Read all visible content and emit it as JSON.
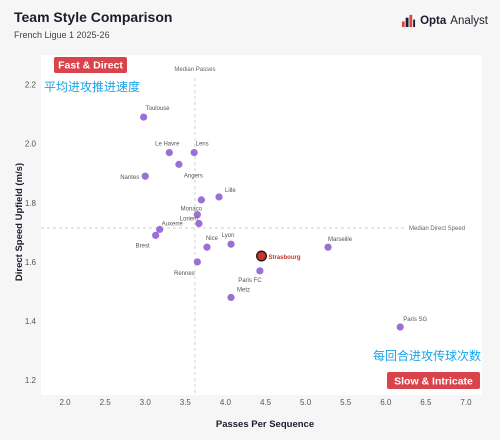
{
  "header": {
    "title": "Team Style Comparison",
    "subtitle": "French Ligue 1 2025-26",
    "logo_bold": "Opta",
    "logo_text": "Analyst"
  },
  "colors": {
    "point": "#9b6fd6",
    "highlight_point": "#c0392b",
    "badge": "#d9434b",
    "annotation": "#1ba3e8",
    "median_line": "#c8c8c8"
  },
  "chart_data": {
    "type": "scatter",
    "xlabel": "Passes Per Sequence",
    "ylabel": "Direct Speed Upfield (m/s)",
    "xlim": [
      1.7,
      7.2
    ],
    "ylim": [
      1.15,
      2.3
    ],
    "xticks": [
      "2.0",
      "2.5",
      "3.0",
      "3.5",
      "4.0",
      "4.5",
      "5.0",
      "5.5",
      "6.0",
      "6.5",
      "7.0"
    ],
    "yticks": [
      "1.2",
      "1.4",
      "1.6",
      "1.8",
      "2.0",
      "2.2"
    ],
    "grid": false,
    "median_x": 3.62,
    "median_y": 1.715,
    "median_x_label": "Median Passes",
    "median_y_label": "Median Direct Speed",
    "quadrants": {
      "top_left": "Fast & Direct",
      "bottom_right": "Slow & Intricate"
    },
    "annotations": {
      "top_left_cn": "平均进攻推进速度",
      "bottom_right_cn": "每回合进攻传球次数"
    },
    "points": [
      {
        "team": "Toulouse",
        "x": 2.98,
        "y": 2.09
      },
      {
        "team": "Le Havre",
        "x": 3.3,
        "y": 1.97
      },
      {
        "team": "Lens",
        "x": 3.61,
        "y": 1.97
      },
      {
        "team": "Angers",
        "x": 3.42,
        "y": 1.93
      },
      {
        "team": "Nantes",
        "x": 3.0,
        "y": 1.89
      },
      {
        "team": "Lille",
        "x": 3.92,
        "y": 1.82
      },
      {
        "team": "",
        "x": 3.7,
        "y": 1.81
      },
      {
        "team": "Monaco",
        "x": 3.65,
        "y": 1.76
      },
      {
        "team": "Lorient",
        "x": 3.67,
        "y": 1.73
      },
      {
        "team": "Auxerre",
        "x": 3.18,
        "y": 1.71
      },
      {
        "team": "Brest",
        "x": 3.13,
        "y": 1.69
      },
      {
        "team": "Nice",
        "x": 3.77,
        "y": 1.65
      },
      {
        "team": "Lyon",
        "x": 4.07,
        "y": 1.66
      },
      {
        "team": "Rennes",
        "x": 3.65,
        "y": 1.6
      },
      {
        "team": "Strasbourg",
        "x": 4.45,
        "y": 1.62,
        "highlight": true
      },
      {
        "team": "Paris FC",
        "x": 4.43,
        "y": 1.57
      },
      {
        "team": "Metz",
        "x": 4.07,
        "y": 1.48
      },
      {
        "team": "Marseille",
        "x": 5.28,
        "y": 1.65
      },
      {
        "team": "Paris SG",
        "x": 6.18,
        "y": 1.38
      }
    ]
  }
}
